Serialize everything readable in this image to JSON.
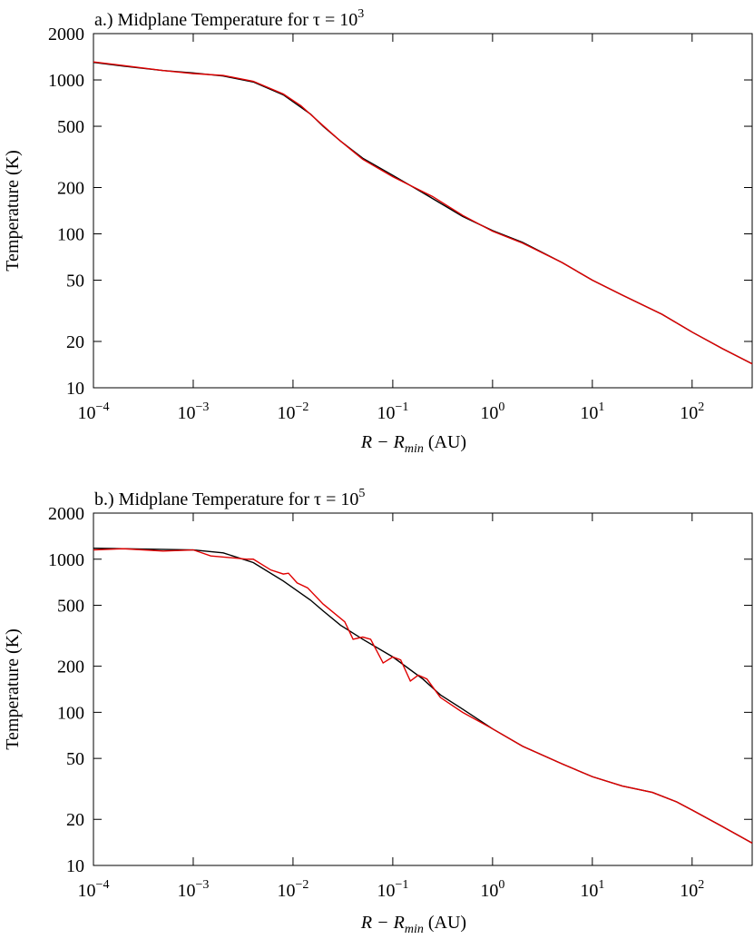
{
  "chart_data": [
    {
      "type": "line",
      "title": "a.) Midplane Temperature for τ = 10",
      "title_exponent": "3",
      "xlabel": [
        "R − R",
        "min",
        " (AU)"
      ],
      "ylabel": "Temperature (K)",
      "xscale": "log",
      "yscale": "log",
      "xlim": [
        0.0001,
        400
      ],
      "ylim": [
        10,
        2000
      ],
      "xticks": [
        {
          "value": 0.0001,
          "label": "10−4"
        },
        {
          "value": 0.001,
          "label": "10−3"
        },
        {
          "value": 0.01,
          "label": "10−2"
        },
        {
          "value": 0.1,
          "label": "10−1"
        },
        {
          "value": 1,
          "label": "100"
        },
        {
          "value": 10,
          "label": "101"
        },
        {
          "value": 100,
          "label": "102"
        }
      ],
      "yticks": [
        10,
        20,
        50,
        100,
        200,
        500,
        1000,
        2000
      ],
      "series": [
        {
          "color": "#000000",
          "x": [
            0.0001,
            0.0002,
            0.0005,
            0.001,
            0.002,
            0.004,
            0.008,
            0.015,
            0.02,
            0.03,
            0.05,
            0.1,
            0.2,
            0.5,
            1,
            2,
            5,
            10,
            20,
            50,
            100,
            200,
            400
          ],
          "values": [
            1300,
            1230,
            1150,
            1110,
            1060,
            970,
            800,
            600,
            500,
            400,
            310,
            240,
            185,
            130,
            105,
            88,
            65,
            50,
            40,
            30,
            23,
            18,
            14.3
          ]
        },
        {
          "color": "#e00000",
          "x": [
            0.0001,
            0.0002,
            0.0005,
            0.001,
            0.002,
            0.004,
            0.008,
            0.012,
            0.02,
            0.03,
            0.05,
            0.1,
            0.25,
            0.5,
            1,
            2,
            5,
            10,
            20,
            50,
            100,
            200,
            400
          ],
          "values": [
            1310,
            1240,
            1150,
            1100,
            1070,
            980,
            810,
            680,
            505,
            400,
            305,
            235,
            175,
            132,
            104,
            87,
            65,
            50,
            40,
            30,
            23,
            18,
            14.3
          ]
        }
      ]
    },
    {
      "type": "line",
      "title": "b.) Midplane Temperature for τ = 10",
      "title_exponent": "5",
      "xlabel": [
        "R − R",
        "min",
        " (AU)"
      ],
      "ylabel": "Temperature (K)",
      "xscale": "log",
      "yscale": "log",
      "xlim": [
        0.0001,
        400
      ],
      "ylim": [
        10,
        2000
      ],
      "xticks": [
        {
          "value": 0.0001,
          "label": "10−4"
        },
        {
          "value": 0.001,
          "label": "10−3"
        },
        {
          "value": 0.01,
          "label": "10−2"
        },
        {
          "value": 0.1,
          "label": "10−1"
        },
        {
          "value": 1,
          "label": "100"
        },
        {
          "value": 10,
          "label": "101"
        },
        {
          "value": 100,
          "label": "102"
        }
      ],
      "yticks": [
        10,
        20,
        50,
        100,
        200,
        500,
        1000,
        2000
      ],
      "series": [
        {
          "color": "#000000",
          "x": [
            0.0001,
            0.001,
            0.002,
            0.004,
            0.008,
            0.015,
            0.02,
            0.03,
            0.05,
            0.1,
            0.2,
            0.3,
            0.5,
            1,
            2,
            5,
            10,
            20,
            40,
            70,
            100,
            200,
            400
          ],
          "values": [
            1180,
            1150,
            1100,
            950,
            720,
            540,
            460,
            370,
            300,
            230,
            165,
            130,
            105,
            78,
            60,
            46,
            38,
            33,
            30,
            26,
            23,
            18,
            14
          ]
        },
        {
          "color": "#e00000",
          "x": [
            0.0001,
            0.0002,
            0.0005,
            0.001,
            0.0015,
            0.0035,
            0.004,
            0.006,
            0.008,
            0.009,
            0.011,
            0.014,
            0.02,
            0.033,
            0.04,
            0.05,
            0.06,
            0.08,
            0.1,
            0.12,
            0.15,
            0.18,
            0.22,
            0.3,
            0.5,
            1,
            2,
            5,
            10,
            20,
            40,
            70,
            100,
            200,
            400
          ],
          "values": [
            1150,
            1170,
            1130,
            1150,
            1050,
            1000,
            1000,
            850,
            800,
            810,
            700,
            650,
            510,
            390,
            300,
            310,
            300,
            210,
            230,
            220,
            160,
            175,
            165,
            125,
            100,
            78,
            60,
            46,
            38,
            33,
            30,
            26,
            23,
            18,
            14
          ]
        }
      ]
    }
  ]
}
